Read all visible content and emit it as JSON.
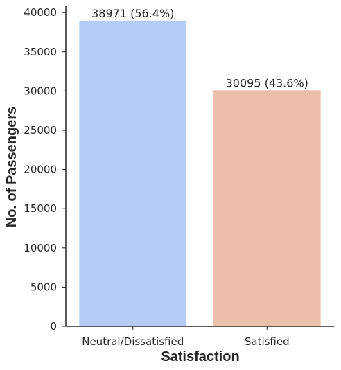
{
  "chart_data": {
    "type": "bar",
    "categories": [
      "Neutral/Dissatisfied",
      "Satisfied"
    ],
    "values": [
      38971,
      30095
    ],
    "bar_labels": [
      "38971 (56.4%)",
      "30095 (43.6%)"
    ],
    "colors": [
      "#b6cbf5",
      "#edbea9"
    ],
    "xlabel": "Satisfaction",
    "ylabel": "No. of Passengers",
    "ylim": [
      0,
      40900
    ],
    "yticks": [
      0,
      5000,
      10000,
      15000,
      20000,
      25000,
      30000,
      35000,
      40000
    ],
    "ytick_labels": [
      "0",
      "5000",
      "10000",
      "15000",
      "20000",
      "25000",
      "30000",
      "35000",
      "40000"
    ],
    "grid": false,
    "legend": "none"
  }
}
